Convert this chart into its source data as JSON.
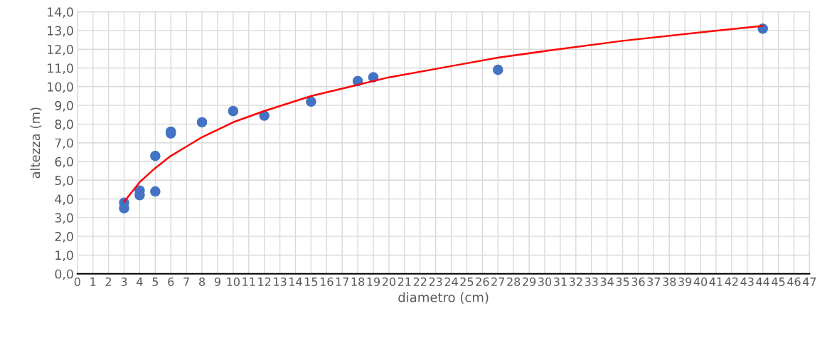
{
  "chart_data": {
    "type": "scatter",
    "xlabel": "diametro (cm)",
    "ylabel": "altezza (m)",
    "xlim": [
      0,
      47
    ],
    "xticks": [
      0,
      1,
      2,
      3,
      4,
      5,
      6,
      7,
      8,
      9,
      10,
      11,
      12,
      13,
      14,
      15,
      16,
      17,
      18,
      19,
      20,
      21,
      22,
      23,
      24,
      25,
      26,
      27,
      28,
      29,
      30,
      31,
      32,
      33,
      34,
      35,
      36,
      37,
      38,
      39,
      40,
      41,
      42,
      43,
      44,
      45,
      46,
      47
    ],
    "ylim": [
      0,
      14
    ],
    "yticks": [
      {
        "value": 0,
        "label": "0,0"
      },
      {
        "value": 1,
        "label": "1,0"
      },
      {
        "value": 2,
        "label": "2,0"
      },
      {
        "value": 3,
        "label": "3,0"
      },
      {
        "value": 4,
        "label": "4,0"
      },
      {
        "value": 5,
        "label": "5,0"
      },
      {
        "value": 6,
        "label": "6,0"
      },
      {
        "value": 7,
        "label": "7,0"
      },
      {
        "value": 8,
        "label": "8,0"
      },
      {
        "value": 9,
        "label": "9,0"
      },
      {
        "value": 10,
        "label": "10,0"
      },
      {
        "value": 11,
        "label": "11,0"
      },
      {
        "value": 12,
        "label": "12,0"
      },
      {
        "value": 13,
        "label": "13,0"
      },
      {
        "value": 14,
        "label": "14,0"
      }
    ],
    "grid": true,
    "legend": false,
    "series": [
      {
        "marker": "circle",
        "color": "#4472c4",
        "x": [
          3,
          3,
          4,
          4,
          5,
          5,
          6,
          6,
          8,
          10,
          12,
          15,
          18,
          19,
          27,
          44
        ],
        "values": [
          3.8,
          3.5,
          4.45,
          4.2,
          6.3,
          4.4,
          7.6,
          7.5,
          8.1,
          8.7,
          8.45,
          9.2,
          10.3,
          10.5,
          10.9,
          13.1
        ]
      },
      {
        "type": "line",
        "marker": "none",
        "color": "#ff0000",
        "x": [
          3,
          4,
          5,
          6,
          8,
          10,
          12,
          15,
          18,
          20,
          24,
          27,
          30,
          35,
          40,
          44
        ],
        "values": [
          3.85,
          4.9,
          5.65,
          6.3,
          7.3,
          8.1,
          8.7,
          9.5,
          10.1,
          10.5,
          11.1,
          11.55,
          11.9,
          12.45,
          12.9,
          13.25
        ]
      }
    ]
  }
}
